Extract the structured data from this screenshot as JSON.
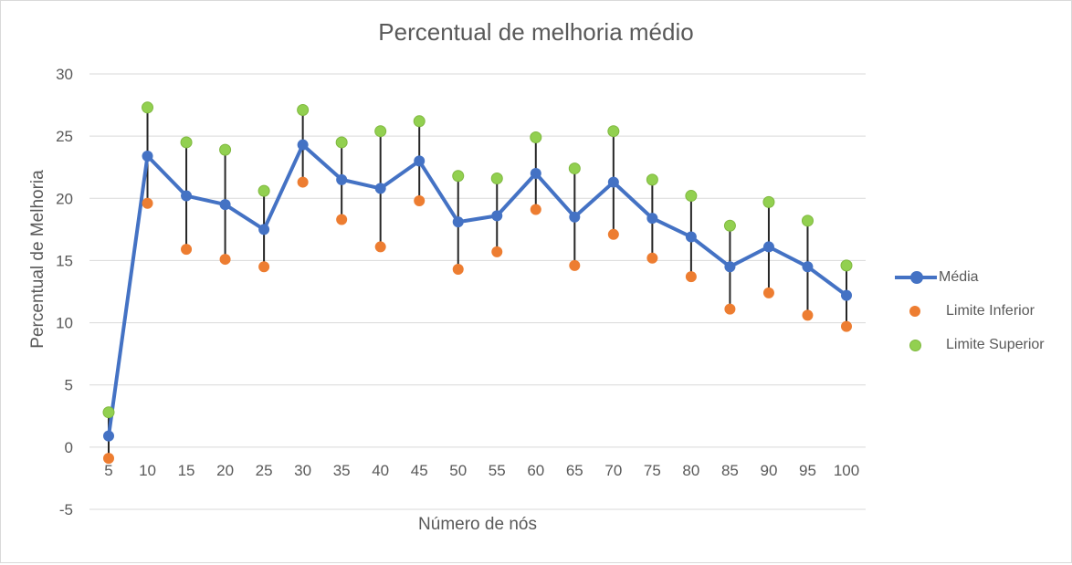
{
  "chart_data": {
    "type": "line",
    "title": "Percentual de melhoria médio",
    "xlabel": "Número de nós",
    "ylabel": "Percentual de Melhoria",
    "categories": [
      "5",
      "10",
      "15",
      "20",
      "25",
      "30",
      "35",
      "40",
      "45",
      "50",
      "55",
      "60",
      "65",
      "70",
      "75",
      "80",
      "85",
      "90",
      "95",
      "100"
    ],
    "ylim": [
      -5,
      30
    ],
    "yticks": [
      "30",
      "25",
      "20",
      "15",
      "10",
      "5",
      "0",
      "-5"
    ],
    "grid": true,
    "legend_position": "right",
    "error_bars": true,
    "series": [
      {
        "name": "Média",
        "style": "line-marker",
        "color": "#4472c4",
        "values": [
          0.9,
          23.4,
          20.2,
          19.5,
          17.5,
          24.3,
          21.5,
          20.8,
          23.0,
          18.1,
          18.6,
          22.0,
          18.5,
          21.3,
          18.4,
          16.9,
          14.5,
          16.1,
          14.5,
          12.2
        ]
      },
      {
        "name": "Limite Inferior",
        "style": "marker",
        "color": "#ed7d31",
        "values": [
          -0.9,
          19.6,
          15.9,
          15.1,
          14.5,
          21.3,
          18.3,
          16.1,
          19.8,
          14.3,
          15.7,
          19.1,
          14.6,
          17.1,
          15.2,
          13.7,
          11.1,
          12.4,
          10.6,
          9.7
        ]
      },
      {
        "name": "Limite Superior",
        "style": "marker",
        "color": "#92d050",
        "values": [
          2.8,
          27.3,
          24.5,
          23.9,
          20.6,
          27.1,
          24.5,
          25.4,
          26.2,
          21.8,
          21.6,
          24.9,
          22.4,
          25.4,
          21.5,
          20.2,
          17.8,
          19.7,
          18.2,
          14.6
        ]
      }
    ]
  }
}
